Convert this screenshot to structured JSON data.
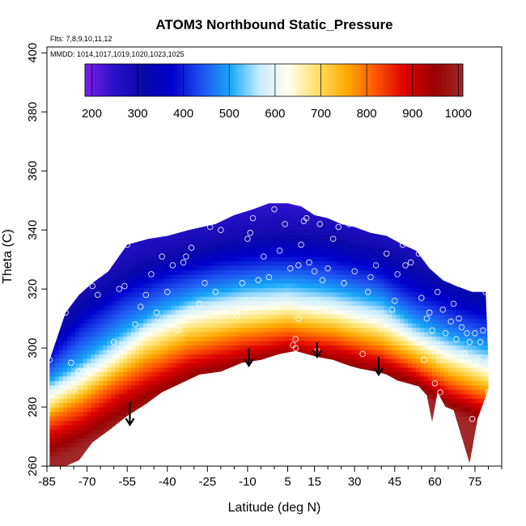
{
  "chart_data": {
    "type": "heatmap",
    "title": "ATOM3 Northbound Static_Pressure",
    "flights_note": "Flts: 7,8,9,10,11,12",
    "dates_note": "MMDD: 1014,1017,1019,1020,1023,1025",
    "xlabel": "Latitude (deg N)",
    "ylabel": "Theta (C)",
    "xlim": [
      -85,
      85
    ],
    "ylim": [
      260,
      402
    ],
    "x_ticks": [
      -85,
      -70,
      -55,
      -40,
      -25,
      -10,
      5,
      15,
      30,
      45,
      60,
      75
    ],
    "y_ticks": [
      260,
      280,
      300,
      320,
      340,
      360,
      380,
      400
    ],
    "colorbar": {
      "ticks": [
        200,
        300,
        400,
        500,
        600,
        700,
        800,
        900,
        1000
      ],
      "range": [
        185,
        1010
      ],
      "colors": [
        "#7b1fe8",
        "#2a10c8",
        "#0a0aa8",
        "#0000cc",
        "#1e50f0",
        "#18a8f8",
        "#c8ecff",
        "#ffffee",
        "#ffe066",
        "#ffaa00",
        "#ff5500",
        "#dd0000",
        "#990000",
        "#a02828"
      ]
    },
    "top_boundary": [
      [
        -84,
        296
      ],
      [
        -78,
        312
      ],
      [
        -73,
        318
      ],
      [
        -68,
        322
      ],
      [
        -62,
        326
      ],
      [
        -55,
        335
      ],
      [
        -47,
        337
      ],
      [
        -40,
        338
      ],
      [
        -32,
        340
      ],
      [
        -22,
        342
      ],
      [
        -15,
        345
      ],
      [
        -8,
        347
      ],
      [
        -2,
        349
      ],
      [
        5,
        349
      ],
      [
        10,
        348
      ],
      [
        15,
        345
      ],
      [
        20,
        344
      ],
      [
        25,
        342
      ],
      [
        30,
        341
      ],
      [
        36,
        339
      ],
      [
        42,
        338
      ],
      [
        48,
        335
      ],
      [
        53,
        333
      ],
      [
        58,
        327
      ],
      [
        63,
        323
      ],
      [
        68,
        321
      ],
      [
        74,
        319
      ],
      [
        79,
        319
      ],
      [
        80,
        296
      ]
    ],
    "bottom_boundary": [
      [
        80,
        286
      ],
      [
        76,
        276
      ],
      [
        73,
        261
      ],
      [
        67,
        279
      ],
      [
        64,
        280
      ],
      [
        61,
        285
      ],
      [
        59,
        275
      ],
      [
        57,
        284
      ],
      [
        54,
        287
      ],
      [
        50,
        288
      ],
      [
        46,
        289
      ],
      [
        42,
        291
      ],
      [
        38,
        292
      ],
      [
        32,
        293
      ],
      [
        28,
        294
      ],
      [
        22,
        296
      ],
      [
        16,
        297
      ],
      [
        12,
        298
      ],
      [
        8,
        299
      ],
      [
        2,
        298
      ],
      [
        -5,
        296
      ],
      [
        -12,
        295
      ],
      [
        -20,
        292
      ],
      [
        -28,
        291
      ],
      [
        -35,
        288
      ],
      [
        -42,
        285
      ],
      [
        -48,
        281
      ],
      [
        -55,
        277
      ],
      [
        -62,
        272
      ],
      [
        -68,
        268
      ],
      [
        -73,
        262
      ],
      [
        -78,
        260
      ],
      [
        -84,
        260
      ]
    ],
    "isobars": [
      {
        "p": 200,
        "pts": [
          [
            -84,
            340
          ],
          [
            -60,
            344
          ],
          [
            -30,
            352
          ],
          [
            0,
            356
          ],
          [
            30,
            352
          ],
          [
            60,
            344
          ],
          [
            80,
            340
          ]
        ]
      },
      {
        "p": 300,
        "pts": [
          [
            -84,
            306
          ],
          [
            -70,
            318
          ],
          [
            -50,
            329
          ],
          [
            -30,
            334
          ],
          [
            -10,
            338
          ],
          [
            5,
            339
          ],
          [
            20,
            338
          ],
          [
            40,
            334
          ],
          [
            55,
            327
          ],
          [
            68,
            322
          ],
          [
            80,
            318
          ]
        ]
      },
      {
        "p": 400,
        "pts": [
          [
            -84,
            296
          ],
          [
            -72,
            307
          ],
          [
            -55,
            318
          ],
          [
            -38,
            324
          ],
          [
            -20,
            328
          ],
          [
            0,
            330
          ],
          [
            18,
            329
          ],
          [
            38,
            325
          ],
          [
            52,
            318
          ],
          [
            65,
            313
          ],
          [
            80,
            309
          ]
        ]
      },
      {
        "p": 500,
        "pts": [
          [
            -84,
            289
          ],
          [
            -72,
            296
          ],
          [
            -58,
            305
          ],
          [
            -45,
            312
          ],
          [
            -28,
            318
          ],
          [
            -10,
            321
          ],
          [
            5,
            322
          ],
          [
            22,
            320
          ],
          [
            40,
            316
          ],
          [
            52,
            309
          ],
          [
            65,
            304
          ],
          [
            80,
            300
          ]
        ]
      },
      {
        "p": 600,
        "pts": [
          [
            -84,
            285
          ],
          [
            -72,
            291
          ],
          [
            -60,
            298
          ],
          [
            -48,
            306
          ],
          [
            -32,
            312
          ],
          [
            -12,
            315
          ],
          [
            5,
            316
          ],
          [
            22,
            314
          ],
          [
            40,
            310
          ],
          [
            52,
            304
          ],
          [
            65,
            299
          ],
          [
            80,
            294
          ]
        ]
      },
      {
        "p": 700,
        "pts": [
          [
            -84,
            280
          ],
          [
            -72,
            286
          ],
          [
            -60,
            293
          ],
          [
            -48,
            300
          ],
          [
            -32,
            306
          ],
          [
            -12,
            309
          ],
          [
            5,
            311
          ],
          [
            22,
            309
          ],
          [
            40,
            305
          ],
          [
            52,
            300
          ],
          [
            65,
            294
          ],
          [
            80,
            289
          ]
        ]
      },
      {
        "p": 800,
        "pts": [
          [
            -84,
            276
          ],
          [
            -72,
            281
          ],
          [
            -60,
            288
          ],
          [
            -48,
            294
          ],
          [
            -32,
            300
          ],
          [
            -12,
            304
          ],
          [
            5,
            306
          ],
          [
            22,
            304
          ],
          [
            40,
            300
          ],
          [
            52,
            295
          ],
          [
            65,
            289
          ],
          [
            80,
            284
          ]
        ]
      },
      {
        "p": 900,
        "pts": [
          [
            -84,
            270
          ],
          [
            -72,
            274
          ],
          [
            -60,
            281
          ],
          [
            -48,
            287
          ],
          [
            -32,
            294
          ],
          [
            -12,
            298
          ],
          [
            5,
            301
          ],
          [
            22,
            299
          ],
          [
            40,
            295
          ],
          [
            52,
            291
          ],
          [
            65,
            284
          ],
          [
            80,
            279
          ]
        ]
      },
      {
        "p": 1000,
        "pts": [
          [
            -84,
            262
          ],
          [
            -72,
            267
          ],
          [
            -60,
            273
          ],
          [
            -48,
            280
          ],
          [
            -32,
            287
          ],
          [
            -12,
            292
          ],
          [
            5,
            295
          ],
          [
            22,
            293
          ],
          [
            40,
            289
          ],
          [
            52,
            286
          ],
          [
            65,
            279
          ],
          [
            80,
            273
          ]
        ]
      }
    ],
    "observations": [
      [
        -84,
        296
      ],
      [
        -78,
        312
      ],
      [
        -76,
        295
      ],
      [
        -75,
        286
      ],
      [
        -73,
        292
      ],
      [
        -71,
        292
      ],
      [
        -70,
        293
      ],
      [
        -68,
        321
      ],
      [
        -66,
        318
      ],
      [
        -64,
        293
      ],
      [
        -60,
        302
      ],
      [
        -58,
        320
      ],
      [
        -56,
        321
      ],
      [
        -55,
        335
      ],
      [
        -52,
        308
      ],
      [
        -50,
        314
      ],
      [
        -48,
        318
      ],
      [
        -46,
        325
      ],
      [
        -44,
        312
      ],
      [
        -42,
        331
      ],
      [
        -40,
        319
      ],
      [
        -38,
        328
      ],
      [
        -36,
        306
      ],
      [
        -34,
        329
      ],
      [
        -33,
        331
      ],
      [
        -31,
        334
      ],
      [
        -28,
        315
      ],
      [
        -26,
        322
      ],
      [
        -24,
        341
      ],
      [
        -22,
        319
      ],
      [
        -20,
        340
      ],
      [
        -18,
        345
      ],
      [
        -16,
        346
      ],
      [
        -14,
        311
      ],
      [
        -12,
        322
      ],
      [
        -10,
        337
      ],
      [
        -9,
        339
      ],
      [
        -8,
        344
      ],
      [
        -6,
        323
      ],
      [
        -4,
        331
      ],
      [
        -2,
        324
      ],
      [
        0,
        347
      ],
      [
        2,
        333
      ],
      [
        4,
        342
      ],
      [
        6,
        327
      ],
      [
        7,
        301
      ],
      [
        8,
        300
      ],
      [
        8,
        303
      ],
      [
        9,
        310
      ],
      [
        9,
        328
      ],
      [
        10,
        335
      ],
      [
        11,
        343
      ],
      [
        12,
        344
      ],
      [
        13,
        329
      ],
      [
        15,
        326
      ],
      [
        16,
        299
      ],
      [
        17,
        342
      ],
      [
        18,
        323
      ],
      [
        20,
        327
      ],
      [
        22,
        337
      ],
      [
        24,
        341
      ],
      [
        26,
        322
      ],
      [
        28,
        342
      ],
      [
        30,
        326
      ],
      [
        33,
        298
      ],
      [
        35,
        319
      ],
      [
        36,
        324
      ],
      [
        38,
        328
      ],
      [
        40,
        307
      ],
      [
        42,
        332
      ],
      [
        44,
        313
      ],
      [
        45,
        316
      ],
      [
        46,
        325
      ],
      [
        48,
        335
      ],
      [
        49,
        328
      ],
      [
        50,
        286
      ],
      [
        51,
        329
      ],
      [
        52,
        286
      ],
      [
        54,
        332
      ],
      [
        55,
        317
      ],
      [
        56,
        296
      ],
      [
        57,
        310
      ],
      [
        58,
        312
      ],
      [
        59,
        306
      ],
      [
        60,
        288
      ],
      [
        61,
        319
      ],
      [
        62,
        285
      ],
      [
        62,
        296
      ],
      [
        63,
        313
      ],
      [
        64,
        305
      ],
      [
        65,
        297
      ],
      [
        66,
        309
      ],
      [
        67,
        315
      ],
      [
        68,
        303
      ],
      [
        69,
        310
      ],
      [
        70,
        307
      ],
      [
        71,
        298
      ],
      [
        72,
        305
      ],
      [
        73,
        302
      ],
      [
        74,
        276
      ],
      [
        75,
        305
      ],
      [
        76,
        296
      ],
      [
        77,
        302
      ],
      [
        78,
        306
      ],
      [
        79,
        319
      ],
      [
        80,
        296
      ],
      [
        80,
        285
      ],
      [
        63,
        279
      ],
      [
        64,
        279
      ]
    ],
    "arrows": [
      [
        -54,
        282,
        274
      ],
      [
        -9.5,
        300,
        294
      ],
      [
        16,
        302,
        297
      ],
      [
        39,
        297,
        291
      ]
    ]
  }
}
